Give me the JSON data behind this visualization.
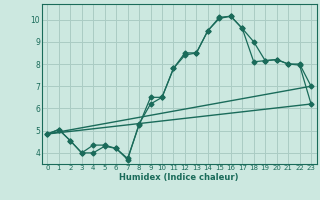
{
  "xlabel": "Humidex (Indice chaleur)",
  "bg_color": "#cce8e0",
  "grid_color": "#aaccc4",
  "line_color": "#1a6b5a",
  "xlim": [
    -0.5,
    23.5
  ],
  "ylim": [
    3.5,
    10.7
  ],
  "yticks": [
    4,
    5,
    6,
    7,
    8,
    9,
    10
  ],
  "xticks": [
    0,
    1,
    2,
    3,
    4,
    5,
    6,
    7,
    8,
    9,
    10,
    11,
    12,
    13,
    14,
    15,
    16,
    17,
    18,
    19,
    20,
    21,
    22,
    23
  ],
  "line1_x": [
    0,
    1,
    2,
    3,
    4,
    5,
    6,
    7,
    8,
    9,
    10,
    11,
    12,
    13,
    14,
    15,
    16,
    17,
    18,
    19,
    20,
    21,
    22,
    23
  ],
  "line1_y": [
    4.85,
    5.05,
    4.55,
    4.0,
    4.0,
    4.3,
    4.2,
    3.7,
    5.3,
    6.2,
    6.5,
    7.8,
    8.4,
    8.5,
    9.5,
    10.05,
    10.15,
    9.6,
    9.0,
    8.15,
    8.2,
    8.0,
    8.0,
    7.0
  ],
  "line2_x": [
    0,
    1,
    2,
    3,
    4,
    5,
    6,
    7,
    8,
    9,
    10,
    11,
    12,
    13,
    14,
    15,
    16,
    17,
    18,
    19,
    20,
    21,
    22,
    23
  ],
  "line2_y": [
    4.85,
    5.05,
    4.55,
    4.0,
    4.35,
    4.35,
    4.2,
    3.75,
    5.25,
    6.5,
    6.5,
    7.8,
    8.5,
    8.5,
    9.5,
    10.1,
    10.15,
    9.6,
    8.1,
    8.15,
    8.2,
    8.0,
    7.95,
    6.2
  ],
  "line3_x": [
    0,
    23
  ],
  "line3_y": [
    4.85,
    6.2
  ],
  "line4_x": [
    0,
    23
  ],
  "line4_y": [
    4.85,
    7.0
  ]
}
